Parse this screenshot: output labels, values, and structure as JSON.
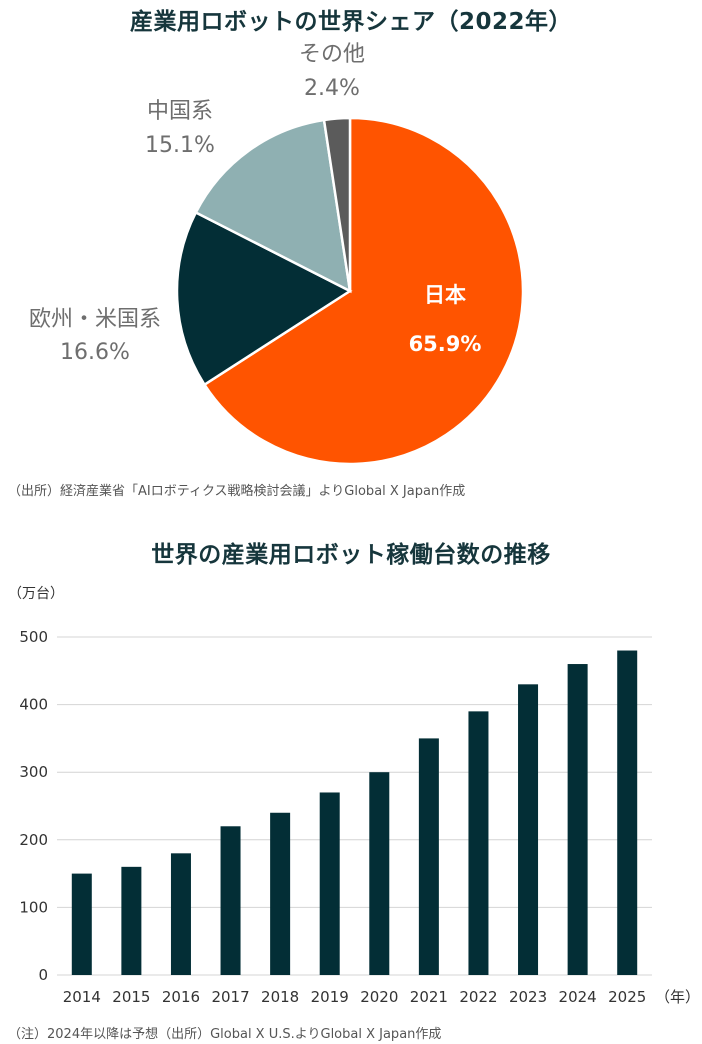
{
  "chart_data": [
    {
      "type": "pie",
      "title": "産業用ロボットの世界シェア（2022年）",
      "slices": [
        {
          "label": "日本",
          "value": 65.9,
          "value_text": "65.9%",
          "color": "#ff5400"
        },
        {
          "label": "欧州・米国系",
          "value": 16.6,
          "value_text": "16.6%",
          "color": "#032e36"
        },
        {
          "label": "中国系",
          "value": 15.1,
          "value_text": "15.1%",
          "color": "#8fb0b2"
        },
        {
          "label": "その他",
          "value": 2.4,
          "value_text": "2.4%",
          "color": "#5b5b5b"
        }
      ],
      "source": "（出所）経済産業省「AIロボティクス戦略検討会議」よりGlobal X Japan作成"
    },
    {
      "type": "bar",
      "title": "世界の産業用ロボット稼働台数の推移",
      "ylabel": "（万台）",
      "xunit": "（年）",
      "ylim": [
        0,
        500
      ],
      "yticks": [
        0,
        100,
        200,
        300,
        400,
        500
      ],
      "grid": true,
      "bar_color": "#032e36",
      "categories": [
        "2014",
        "2015",
        "2016",
        "2017",
        "2018",
        "2019",
        "2020",
        "2021",
        "2022",
        "2023",
        "2024",
        "2025"
      ],
      "values": [
        150,
        160,
        180,
        220,
        240,
        270,
        300,
        350,
        390,
        430,
        460,
        480
      ],
      "note": "（注）2024年以降は予想（出所）Global X U.S.よりGlobal X Japan作成"
    }
  ]
}
